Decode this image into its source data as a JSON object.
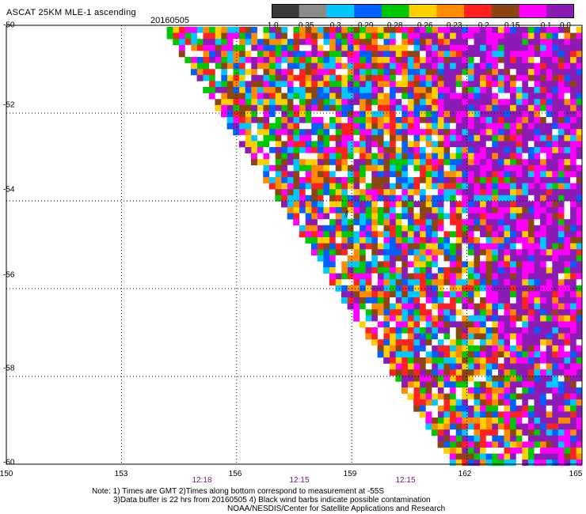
{
  "header": {
    "title": "ASCAT 25KM MLE-1 ascending",
    "date": "20160505"
  },
  "colorbar": {
    "tick_labels": [
      "-1.0",
      "-0.35",
      "-0.3",
      "-0.29",
      "-0.28",
      "-0.26",
      "-0.23",
      "-0.2",
      "-0.15",
      "-0.1",
      "0.0"
    ],
    "colors": [
      "#3a3a3a",
      "#8a8a8a",
      "#00c8ff",
      "#0060ff",
      "#00c800",
      "#ffd000",
      "#ff8c00",
      "#ff2020",
      "#8b4513",
      "#ff00ff",
      "#8c1ab4"
    ]
  },
  "map": {
    "lat_labels": [
      "-50",
      "-52",
      "-54",
      "-56",
      "-58",
      "-60"
    ],
    "lat_values": [
      -50,
      -52,
      -54,
      -56,
      -58,
      -60
    ],
    "lon_labels": [
      "150",
      "153",
      "156",
      "159",
      "162",
      "165"
    ],
    "lon_values": [
      150,
      153,
      156,
      159,
      162,
      165
    ],
    "time_labels": [
      "12:18",
      "12:15",
      "12:15"
    ]
  },
  "notes": {
    "line1": "Note: 1) Times are GMT 2)Times along bottom correspond to measurement at -55S",
    "line2": "3)Data buffer is 22 hrs from 20160505 4) Black wind barbs indicate possible contamination",
    "line3": "NOAA/NESDIS/Center for Satellite Applications and Research"
  }
}
